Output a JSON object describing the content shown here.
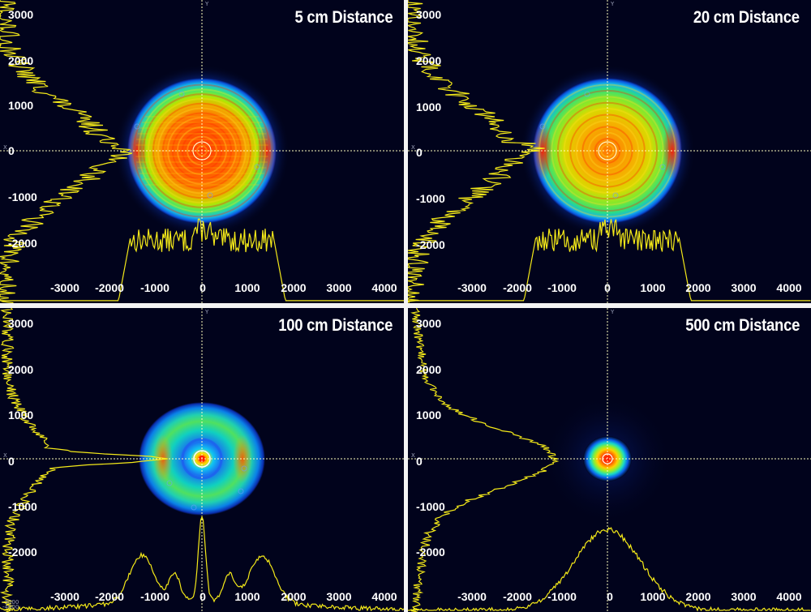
{
  "figure": {
    "colors": {
      "background": "#01031c",
      "profile": "#f5ea19",
      "crosshair": "#ffffbe",
      "text": "#ffffff",
      "separator": "#f4f4f4"
    },
    "axis_labels": {
      "x": "Y",
      "y": "X"
    },
    "panels": [
      {
        "title": "5 cm Distance",
        "x_ticks": [
          "-3000",
          "-2000",
          "-1000",
          "0",
          "1000",
          "2000",
          "3000",
          "4000"
        ],
        "y_ticks": [
          "3000",
          "2000",
          "1000",
          "0",
          "-1000",
          "-2000"
        ],
        "beam": "flat-top",
        "corner_ticks": []
      },
      {
        "title": "20 cm Distance",
        "x_ticks": [
          "-3000",
          "-2000",
          "-1000",
          "0",
          "1000",
          "2000",
          "3000",
          "4000"
        ],
        "y_ticks": [
          "3000",
          "2000",
          "1000",
          "0",
          "-1000",
          "-2000"
        ],
        "beam": "flat-top-rings",
        "corner_ticks": []
      },
      {
        "title": "100 cm Distance",
        "x_ticks": [
          "-3000",
          "-2000",
          "-1000",
          "0",
          "1000",
          "2000",
          "3000",
          "4000"
        ],
        "y_ticks": [
          "3000",
          "2000",
          "1000",
          "0",
          "-1000",
          "-2000"
        ],
        "beam": "ring",
        "corner_ticks": [
          "-3000",
          "-4000"
        ]
      },
      {
        "title": "500 cm Distance",
        "x_ticks": [
          "-3000",
          "-2000",
          "-1000",
          "0",
          "1000",
          "2000",
          "3000",
          "4000"
        ],
        "y_ticks": [
          "3000",
          "2000",
          "1000",
          "0",
          "-1000",
          "-2000"
        ],
        "beam": "gaussian",
        "corner_ticks": []
      }
    ]
  }
}
